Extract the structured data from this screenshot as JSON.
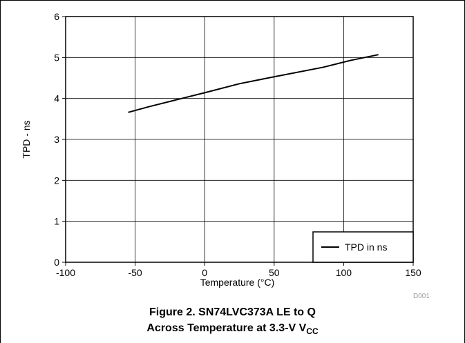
{
  "chart_data": {
    "type": "line",
    "title": "",
    "xlabel": "Temperature (°C)",
    "ylabel": "TPD - ns",
    "xlim": [
      -100,
      150
    ],
    "ylim": [
      0,
      6
    ],
    "xticks": [
      -100,
      -50,
      0,
      50,
      100,
      150
    ],
    "yticks": [
      0,
      1,
      2,
      3,
      4,
      5,
      6
    ],
    "grid": true,
    "legend_position": "bottom-right",
    "series": [
      {
        "name": "TPD in ns",
        "color": "#000000",
        "x": [
          -55,
          -40,
          -20,
          0,
          25,
          50,
          85,
          105,
          125
        ],
        "y": [
          3.66,
          3.8,
          3.97,
          4.14,
          4.36,
          4.53,
          4.76,
          4.93,
          5.07
        ]
      }
    ]
  },
  "code": "D001",
  "caption": {
    "line1": "Figure 2. SN74LVC373A LE to Q",
    "line2_main": "Across Temperature at 3.3-V V",
    "line2_sub": "CC"
  }
}
